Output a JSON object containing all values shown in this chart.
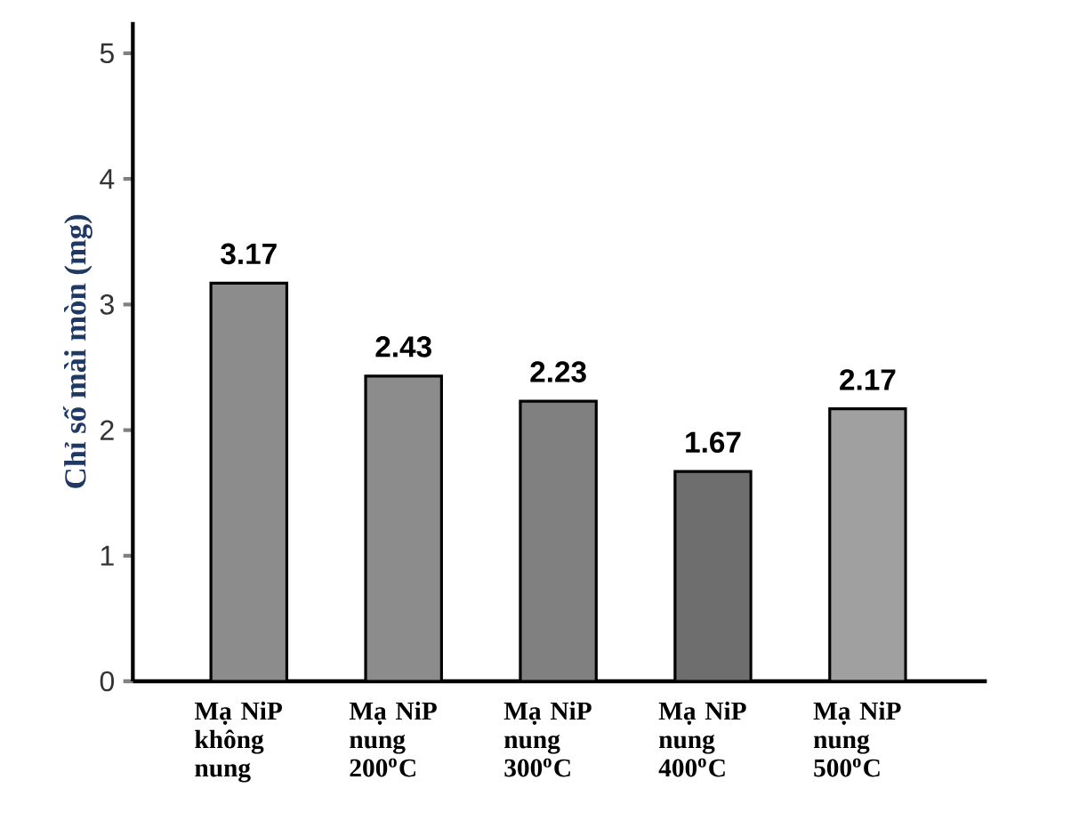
{
  "chart_data": {
    "type": "bar",
    "ylabel": "Chỉ số mài mòn (mg)",
    "categories": [
      "Mạ NiP không nung",
      "Mạ NiP nung 200$^{o}$C",
      "Mạ NiP nung 300$^{o}$C",
      "Mạ NiP nung 400$^{o}$C",
      "Mạ NiP nung 500$^{o}$C"
    ],
    "values": [
      3.17,
      2.43,
      2.23,
      1.67,
      2.17
    ],
    "colors": [
      "#8c8c8c",
      "#8c8c8c",
      "#808080",
      "#6e6e6e",
      "#a0a0a0"
    ],
    "ylim": [
      0,
      5.25
    ],
    "yticks": [
      0,
      1,
      2,
      3,
      4,
      5
    ],
    "data_labels": true,
    "grid": false
  }
}
